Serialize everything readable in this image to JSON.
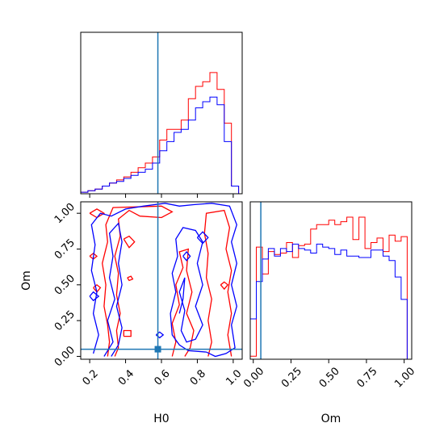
{
  "chart_data": [
    {
      "type": "histogram",
      "panel": "H0 marginal",
      "xlim": [
        0.15,
        1.05
      ],
      "grid": false,
      "truth_line": 0.58,
      "truth_color": "#1f77b4",
      "x_tick_values": [
        0.2,
        0.4,
        0.6,
        0.8,
        1.0
      ],
      "bin_edges": [
        0.15,
        0.19,
        0.23,
        0.27,
        0.31,
        0.35,
        0.39,
        0.43,
        0.47,
        0.51,
        0.55,
        0.59,
        0.63,
        0.67,
        0.71,
        0.75,
        0.79,
        0.83,
        0.87,
        0.91,
        0.95,
        0.99,
        1.03
      ],
      "series": [
        {
          "color": "#ff0000",
          "values": [
            0.01,
            0.02,
            0.03,
            0.05,
            0.07,
            0.09,
            0.11,
            0.14,
            0.17,
            0.2,
            0.24,
            0.35,
            0.42,
            0.42,
            0.48,
            0.62,
            0.7,
            0.73,
            0.79,
            0.68,
            0.46,
            0.05
          ]
        },
        {
          "color": "#0000ff",
          "values": [
            0.01,
            0.02,
            0.03,
            0.05,
            0.07,
            0.08,
            0.1,
            0.12,
            0.14,
            0.16,
            0.2,
            0.28,
            0.34,
            0.4,
            0.42,
            0.48,
            0.56,
            0.6,
            0.63,
            0.58,
            0.34,
            0.05
          ]
        }
      ]
    },
    {
      "type": "histogram",
      "panel": "Om marginal",
      "xlim": [
        -0.02,
        1.05
      ],
      "grid": false,
      "truth_line": 0.05,
      "truth_color": "#1f77b4",
      "xlabel": "Om",
      "x_ticks": [
        "0.00",
        "0.25",
        "0.50",
        "0.75",
        "1.00"
      ],
      "x_tick_values": [
        0.0,
        0.25,
        0.5,
        0.75,
        1.0
      ],
      "bin_edges": [
        -0.02,
        0.02,
        0.06,
        0.1,
        0.14,
        0.18,
        0.22,
        0.26,
        0.3,
        0.34,
        0.38,
        0.42,
        0.46,
        0.5,
        0.54,
        0.58,
        0.62,
        0.66,
        0.7,
        0.74,
        0.78,
        0.82,
        0.86,
        0.9,
        0.94,
        0.98,
        1.02,
        1.05
      ],
      "series": [
        {
          "color": "#ff0000",
          "values": [
            0.02,
            0.75,
            0.57,
            0.72,
            0.7,
            0.71,
            0.78,
            0.68,
            0.76,
            0.77,
            0.87,
            0.9,
            0.9,
            0.93,
            0.9,
            0.92,
            0.95,
            0.8,
            0.95,
            0.74,
            0.78,
            0.81,
            0.72,
            0.83,
            0.79,
            0.82,
            0.0
          ]
        },
        {
          "color": "#0000ff",
          "values": [
            0.27,
            0.52,
            0.67,
            0.74,
            0.69,
            0.74,
            0.72,
            0.77,
            0.74,
            0.73,
            0.71,
            0.77,
            0.75,
            0.74,
            0.7,
            0.73,
            0.69,
            0.69,
            0.68,
            0.68,
            0.73,
            0.73,
            0.69,
            0.66,
            0.55,
            0.4,
            0.0
          ]
        }
      ]
    },
    {
      "type": "contour",
      "panel": "H0 vs Om",
      "xlabel": "H0",
      "ylabel": "Om",
      "xlim": [
        0.15,
        1.05
      ],
      "ylim": [
        -0.02,
        1.08
      ],
      "grid": false,
      "truth": {
        "x": 0.58,
        "y": 0.05,
        "color": "#1f77b4"
      },
      "x_ticks": [
        "0.2",
        "0.4",
        "0.6",
        "0.8",
        "1.0"
      ],
      "x_tick_values": [
        0.2,
        0.4,
        0.6,
        0.8,
        1.0
      ],
      "y_ticks": [
        "0.00",
        "0.25",
        "0.50",
        "0.75",
        "1.00"
      ],
      "y_tick_values": [
        0.0,
        0.25,
        0.5,
        0.75,
        1.0
      ],
      "series": [
        {
          "color": "#ff0000",
          "contours": [
            [
              [
                0.3,
                0.0
              ],
              [
                0.31,
                0.1
              ],
              [
                0.3,
                0.22
              ],
              [
                0.28,
                0.35
              ],
              [
                0.29,
                0.5
              ],
              [
                0.27,
                0.65
              ],
              [
                0.3,
                0.8
              ],
              [
                0.29,
                0.92
              ],
              [
                0.33,
                1.04
              ],
              [
                0.6,
                1.05
              ],
              [
                0.66,
                1.01
              ],
              [
                0.6,
                0.97
              ],
              [
                0.48,
                0.98
              ],
              [
                0.42,
                1.02
              ],
              [
                0.36,
                0.96
              ],
              [
                0.37,
                0.84
              ],
              [
                0.34,
                0.7
              ],
              [
                0.36,
                0.58
              ],
              [
                0.35,
                0.43
              ],
              [
                0.37,
                0.3
              ],
              [
                0.35,
                0.18
              ],
              [
                0.36,
                0.06
              ],
              [
                0.34,
                0.0
              ]
            ],
            [
              [
                0.66,
                0.0
              ],
              [
                0.68,
                0.1
              ],
              [
                0.66,
                0.23
              ],
              [
                0.7,
                0.36
              ],
              [
                0.68,
                0.5
              ],
              [
                0.72,
                0.62
              ],
              [
                0.7,
                0.73
              ],
              [
                0.75,
                0.75
              ],
              [
                0.74,
                0.6
              ],
              [
                0.77,
                0.45
              ],
              [
                0.74,
                0.3
              ],
              [
                0.78,
                0.18
              ],
              [
                0.76,
                0.06
              ],
              [
                0.73,
                0.0
              ]
            ],
            [
              [
                0.86,
                0.0
              ],
              [
                0.88,
                0.1
              ],
              [
                0.86,
                0.25
              ],
              [
                0.88,
                0.4
              ],
              [
                0.85,
                0.55
              ],
              [
                0.86,
                0.72
              ],
              [
                0.84,
                0.86
              ],
              [
                0.85,
                1.0
              ],
              [
                0.95,
                1.02
              ],
              [
                0.98,
                0.9
              ],
              [
                0.96,
                0.75
              ],
              [
                0.99,
                0.6
              ],
              [
                0.97,
                0.45
              ],
              [
                0.99,
                0.3
              ],
              [
                0.97,
                0.15
              ],
              [
                0.99,
                0.0
              ]
            ],
            [
              [
                0.2,
                1.0
              ],
              [
                0.24,
                1.03
              ],
              [
                0.28,
                1.0
              ],
              [
                0.24,
                0.97
              ],
              [
                0.2,
                1.0
              ]
            ],
            [
              [
                0.39,
                0.82
              ],
              [
                0.42,
                0.84
              ],
              [
                0.45,
                0.8
              ],
              [
                0.42,
                0.76
              ],
              [
                0.39,
                0.82
              ]
            ],
            [
              [
                0.2,
                0.7
              ],
              [
                0.22,
                0.72
              ],
              [
                0.24,
                0.7
              ],
              [
                0.22,
                0.68
              ],
              [
                0.2,
                0.7
              ]
            ],
            [
              [
                0.22,
                0.48
              ],
              [
                0.24,
                0.5
              ],
              [
                0.26,
                0.48
              ],
              [
                0.24,
                0.45
              ],
              [
                0.22,
                0.48
              ]
            ],
            [
              [
                0.39,
                0.14
              ],
              [
                0.43,
                0.14
              ],
              [
                0.43,
                0.18
              ],
              [
                0.39,
                0.18
              ],
              [
                0.39,
                0.14
              ]
            ],
            [
              [
                0.41,
                0.55
              ],
              [
                0.43,
                0.56
              ],
              [
                0.44,
                0.54
              ],
              [
                0.42,
                0.53
              ],
              [
                0.41,
                0.55
              ]
            ],
            [
              [
                0.93,
                0.5
              ],
              [
                0.95,
                0.52
              ],
              [
                0.97,
                0.5
              ],
              [
                0.95,
                0.47
              ],
              [
                0.93,
                0.5
              ]
            ]
          ]
        },
        {
          "color": "#0000ff",
          "contours": [
            [
              [
                0.22,
                0.02
              ],
              [
                0.25,
                0.15
              ],
              [
                0.22,
                0.3
              ],
              [
                0.24,
                0.45
              ],
              [
                0.21,
                0.6
              ],
              [
                0.23,
                0.78
              ],
              [
                0.21,
                0.92
              ],
              [
                0.26,
                1.0
              ],
              [
                0.32,
                0.98
              ],
              [
                0.4,
                1.03
              ],
              [
                0.5,
                1.05
              ],
              [
                0.62,
                1.07
              ],
              [
                0.7,
                1.05
              ],
              [
                0.78,
                1.06
              ],
              [
                0.88,
                1.07
              ],
              [
                0.98,
                1.05
              ],
              [
                1.02,
                0.92
              ],
              [
                0.99,
                0.8
              ],
              [
                1.02,
                0.65
              ],
              [
                0.99,
                0.5
              ],
              [
                1.02,
                0.35
              ],
              [
                0.99,
                0.22
              ],
              [
                1.01,
                0.06
              ],
              [
                0.96,
                0.02
              ],
              [
                0.9,
                0.0
              ],
              [
                0.85,
                0.03
              ],
              [
                0.75,
                0.04
              ],
              [
                0.7,
                0.08
              ],
              [
                0.66,
                0.15
              ],
              [
                0.65,
                0.3
              ],
              [
                0.68,
                0.45
              ],
              [
                0.66,
                0.58
              ],
              [
                0.69,
                0.7
              ],
              [
                0.68,
                0.82
              ],
              [
                0.72,
                0.9
              ],
              [
                0.79,
                0.88
              ],
              [
                0.83,
                0.8
              ],
              [
                0.8,
                0.65
              ],
              [
                0.83,
                0.5
              ],
              [
                0.79,
                0.35
              ],
              [
                0.83,
                0.22
              ],
              [
                0.79,
                0.12
              ],
              [
                0.74,
                0.1
              ],
              [
                0.71,
                0.18
              ],
              [
                0.73,
                0.32
              ],
              [
                0.7,
                0.45
              ],
              [
                0.73,
                0.55
              ],
              [
                0.72,
                0.4
              ],
              [
                0.7,
                0.3
              ]
            ],
            [
              [
                0.28,
                0.0
              ],
              [
                0.33,
                0.1
              ],
              [
                0.3,
                0.25
              ],
              [
                0.34,
                0.4
              ],
              [
                0.31,
                0.55
              ],
              [
                0.33,
                0.7
              ],
              [
                0.31,
                0.86
              ],
              [
                0.36,
                0.93
              ],
              [
                0.38,
                0.8
              ],
              [
                0.36,
                0.65
              ],
              [
                0.38,
                0.5
              ],
              [
                0.35,
                0.35
              ],
              [
                0.38,
                0.2
              ],
              [
                0.36,
                0.08
              ],
              [
                0.32,
                0.0
              ]
            ],
            [
              [
                0.57,
                0.15
              ],
              [
                0.59,
                0.17
              ],
              [
                0.61,
                0.15
              ],
              [
                0.59,
                0.13
              ],
              [
                0.57,
                0.15
              ]
            ],
            [
              [
                0.72,
                0.7
              ],
              [
                0.74,
                0.73
              ],
              [
                0.76,
                0.7
              ],
              [
                0.74,
                0.67
              ],
              [
                0.72,
                0.7
              ]
            ],
            [
              [
                0.2,
                0.42
              ],
              [
                0.22,
                0.45
              ],
              [
                0.25,
                0.42
              ],
              [
                0.22,
                0.39
              ],
              [
                0.2,
                0.42
              ]
            ],
            [
              [
                0.8,
                0.83
              ],
              [
                0.83,
                0.87
              ],
              [
                0.86,
                0.83
              ],
              [
                0.83,
                0.79
              ],
              [
                0.8,
                0.83
              ]
            ]
          ]
        }
      ]
    }
  ]
}
